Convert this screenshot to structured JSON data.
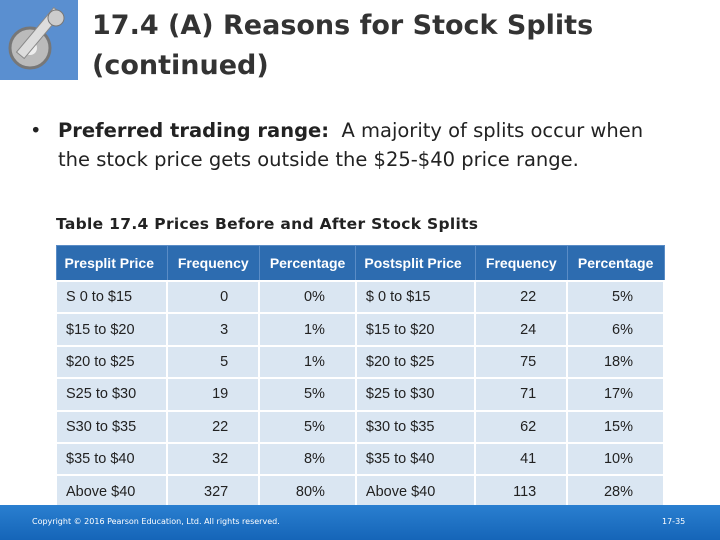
{
  "header": {
    "title_line1": "17.4 (A)  Reasons for Stock Splits",
    "title_line2": "(continued)"
  },
  "bullet": {
    "label": "Preferred trading range:",
    "text": "A majority of splits occur when the stock price gets outside the $25-$40 price range."
  },
  "table": {
    "caption": "Table 17.4  Prices Before and After Stock Splits",
    "columns": [
      "Presplit Price",
      "Frequency",
      "Percentage",
      "Postsplit Price",
      "Frequency",
      "Percentage"
    ],
    "rows": [
      [
        "S 0 to $15",
        "0",
        "0%",
        "$ 0 to $15",
        "22",
        "5%"
      ],
      [
        "$15 to $20",
        "3",
        "1%",
        "$15 to $20",
        "24",
        "6%"
      ],
      [
        "$20 to $25",
        "5",
        "1%",
        "$20 to $25",
        "75",
        "18%"
      ],
      [
        "S25 to $30",
        "19",
        "5%",
        "$25 to $30",
        "71",
        "17%"
      ],
      [
        "S30 to $35",
        "22",
        "5%",
        "$30 to $35",
        "62",
        "15%"
      ],
      [
        "$35 to $40",
        "32",
        "8%",
        "$35 to $40",
        "41",
        "10%"
      ],
      [
        "Above $40",
        "327",
        "80%",
        "Above $40",
        "113",
        "28%"
      ]
    ]
  },
  "footer": {
    "copyright": "Copyright © 2016 Pearson Education, Ltd. All rights reserved.",
    "page": "17-35"
  }
}
